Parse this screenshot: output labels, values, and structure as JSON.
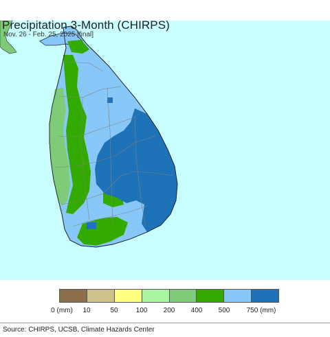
{
  "title": "Precipitation 3-Month (CHIRPS)",
  "subtitle": "Nov. 26 - Feb. 25, 2025 [final]",
  "legend": {
    "unit_suffix": "(mm)",
    "bins": [
      {
        "label": "0 (mm)",
        "color": "#8b6e4a"
      },
      {
        "label": "10",
        "color": "#d0c08a"
      },
      {
        "label": "50",
        "color": "#ffff80"
      },
      {
        "label": "100",
        "color": "#a8f7a0"
      },
      {
        "label": "200",
        "color": "#7fcc78"
      },
      {
        "label": "400",
        "color": "#33aa00"
      },
      {
        "label": "500",
        "color": "#88c8f8"
      },
      {
        "label": "750 (mm)",
        "color": "#1e73b8"
      }
    ]
  },
  "colors": {
    "ocean": "#c8fefe",
    "land_mainland": "#8fd48a",
    "district_lines": "#808080"
  },
  "source": "Source: CHIRPS, UCSB, Climate Hazards Center"
}
